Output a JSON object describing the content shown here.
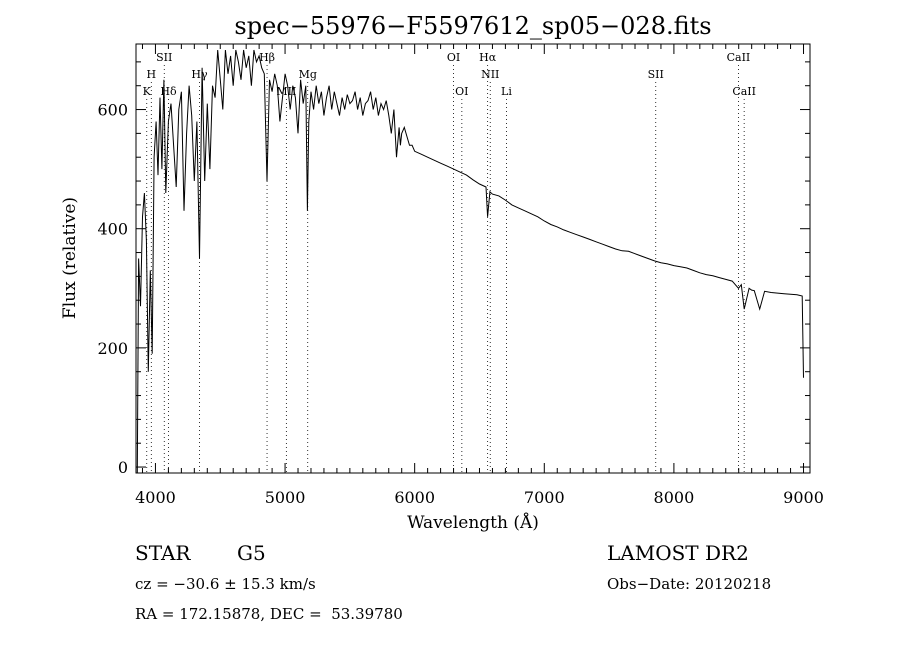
{
  "chart_data": {
    "type": "line",
    "title": "spec−55976−F5597612_sp05−028.fits",
    "xlabel": "Wavelength (Å)",
    "ylabel": "Flux (relative)",
    "xlim": [
      3850,
      9050
    ],
    "ylim": [
      -10,
      710
    ],
    "xticks": [
      4000,
      5000,
      6000,
      7000,
      8000,
      9000
    ],
    "yticks": [
      0,
      200,
      400,
      600
    ],
    "grid": false,
    "series": [
      {
        "x": [
          3860,
          3870,
          3885,
          3900,
          3915,
          3930,
          3945,
          3960,
          3975,
          3990,
          4005,
          4020,
          4035,
          4050,
          4065,
          4080,
          4100,
          4120,
          4140,
          4160,
          4180,
          4200,
          4220,
          4240,
          4260,
          4280,
          4300,
          4320,
          4340,
          4360,
          4380,
          4400,
          4420,
          4440,
          4460,
          4480,
          4500,
          4520,
          4540,
          4560,
          4580,
          4600,
          4620,
          4640,
          4660,
          4680,
          4700,
          4720,
          4740,
          4760,
          4780,
          4800,
          4820,
          4840,
          4861,
          4880,
          4900,
          4920,
          4940,
          4960,
          4980,
          5000,
          5020,
          5040,
          5060,
          5080,
          5100,
          5120,
          5140,
          5160,
          5172,
          5183,
          5200,
          5220,
          5240,
          5260,
          5280,
          5300,
          5320,
          5340,
          5360,
          5380,
          5400,
          5420,
          5440,
          5460,
          5480,
          5500,
          5520,
          5540,
          5560,
          5580,
          5600,
          5620,
          5640,
          5660,
          5680,
          5700,
          5720,
          5740,
          5760,
          5780,
          5800,
          5820,
          5840,
          5860,
          5880,
          5890,
          5900,
          5920,
          5940,
          5960,
          5980,
          6000,
          6050,
          6100,
          6150,
          6200,
          6250,
          6300,
          6350,
          6400,
          6450,
          6500,
          6550,
          6563,
          6580,
          6600,
          6650,
          6700,
          6750,
          6800,
          6850,
          6900,
          6950,
          7000,
          7050,
          7100,
          7150,
          7200,
          7250,
          7300,
          7350,
          7400,
          7450,
          7500,
          7550,
          7600,
          7650,
          7700,
          7750,
          7800,
          7850,
          7900,
          7950,
          8000,
          8050,
          8100,
          8150,
          8200,
          8250,
          8300,
          8350,
          8400,
          8450,
          8498,
          8520,
          8542,
          8580,
          8600,
          8620,
          8662,
          8700,
          8750,
          8800,
          8850,
          8900,
          8950,
          8990,
          9000
        ],
        "y": [
          -10,
          350,
          270,
          420,
          460,
          380,
          160,
          330,
          190,
          520,
          580,
          490,
          620,
          500,
          650,
          460,
          580,
          610,
          540,
          470,
          600,
          630,
          430,
          560,
          640,
          590,
          480,
          580,
          350,
          670,
          480,
          610,
          500,
          640,
          620,
          700,
          650,
          600,
          700,
          660,
          690,
          640,
          700,
          680,
          650,
          700,
          670,
          690,
          640,
          700,
          680,
          690,
          670,
          660,
          480,
          650,
          630,
          660,
          640,
          580,
          620,
          660,
          640,
          600,
          640,
          620,
          560,
          650,
          610,
          640,
          430,
          580,
          630,
          600,
          640,
          610,
          630,
          590,
          620,
          640,
          600,
          630,
          610,
          590,
          620,
          600,
          625,
          610,
          615,
          630,
          600,
          620,
          590,
          610,
          615,
          630,
          600,
          620,
          590,
          610,
          600,
          615,
          590,
          560,
          600,
          520,
          570,
          540,
          560,
          570,
          555,
          540,
          540,
          530,
          525,
          520,
          515,
          510,
          505,
          500,
          495,
          490,
          482,
          475,
          470,
          420,
          462,
          458,
          455,
          448,
          440,
          435,
          430,
          425,
          420,
          413,
          407,
          403,
          398,
          394,
          390,
          386,
          382,
          378,
          374,
          370,
          366,
          363,
          362,
          358,
          354,
          350,
          346,
          343,
          341,
          338,
          336,
          334,
          330,
          326,
          323,
          321,
          318,
          315,
          312,
          300,
          306,
          265,
          300,
          297,
          296,
          265,
          295,
          293,
          292,
          291,
          290,
          289,
          287,
          150
        ]
      }
    ],
    "lines_top": [
      {
        "label": "SII",
        "x": 4068
      },
      {
        "label": "Hβ",
        "x": 4861
      },
      {
        "label": "OI",
        "x": 6300
      },
      {
        "label": "Hα",
        "x": 6563
      },
      {
        "label": "CaII",
        "x": 8498
      }
    ],
    "lines_mid": [
      {
        "label": "H",
        "x": 3968
      },
      {
        "label": "Hγ",
        "x": 4340
      },
      {
        "label": "Mg",
        "x": 5175
      },
      {
        "label": "NII",
        "x": 6583
      },
      {
        "label": "SII",
        "x": 7860
      }
    ],
    "lines_low": [
      {
        "label": "K",
        "x": 3933
      },
      {
        "label": "Hδ",
        "x": 4101
      },
      {
        "label": "MII",
        "x": 5010
      },
      {
        "label": "OI",
        "x": 6364
      },
      {
        "label": "Li",
        "x": 6708
      },
      {
        "label": "CaII",
        "x": 8542
      }
    ]
  },
  "info": {
    "object_class": "STAR",
    "subclass": "G5",
    "survey": "LAMOST DR2",
    "cz": "cz = −30.6 ± 15.3 km/s",
    "obs_date": "Obs−Date: 20120218",
    "coords": "RA = 172.15878, DEC =  53.39780"
  }
}
